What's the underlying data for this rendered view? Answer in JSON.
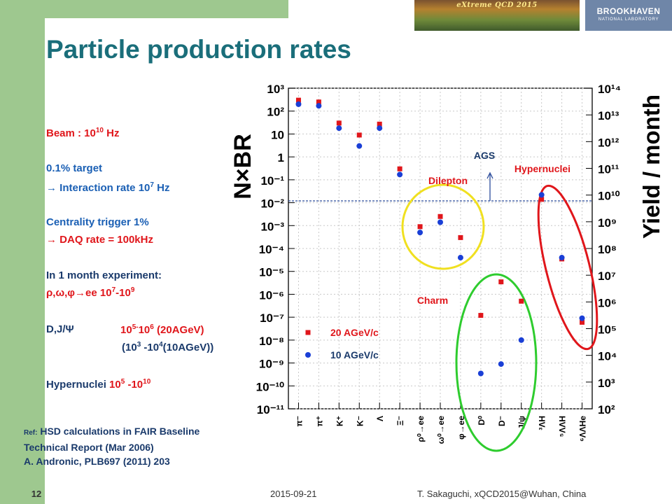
{
  "slide": {
    "title": "Particle production rates",
    "page_number": "12",
    "date": "2015-09-21",
    "author": "T. Sakaguchi, xQCD2015@Wuhan, China",
    "banner_text": "eXtreme QCD 2015",
    "logo": {
      "main": "BROOKHAVEN",
      "sub": "NATIONAL LABORATORY"
    }
  },
  "info": {
    "beam": {
      "text": "Beam : 10",
      "sup": "10",
      "suffix": " Hz"
    },
    "target": "0.1% target",
    "interaction": {
      "text": "→ Interaction rate 10",
      "sup": "7",
      "suffix": " Hz"
    },
    "centrality": "Centrality trigger 1%",
    "daq": "→ DAQ rate = 100kHz",
    "month_label": "In 1 month experiment:",
    "vector": {
      "label": "ρ,ω,φ→ee ",
      "val": "10",
      "sup1": "7",
      "mid": "-10",
      "sup2": "9"
    },
    "charm": {
      "label": "D,J/Ψ",
      "l1a": "10",
      "l1s1": "5-",
      "l1b": "10",
      "l1s2": "6",
      "l1c": " (20AGeV)",
      "l2a": "(10",
      "l2s1": "3",
      "l2b": " -10",
      "l2s2": "4",
      "l2c": "(10AGeV))"
    },
    "hyper": {
      "label": "Hypernuclei ",
      "a": "10",
      "s1": "5",
      "b": " -10",
      "s2": "10"
    }
  },
  "reference": {
    "prefix": "Ref:",
    "line1": " HSD calculations in FAIR Baseline",
    "line2": "Technical Report (Mar 2006)",
    "line3": "A. Andronic, PLB697 (2011) 203"
  },
  "chart_data": {
    "type": "scatter",
    "ylabel": "N×BR",
    "y2label": "Yield / month",
    "yscale": "log",
    "ylim": [
      1e-11,
      1000
    ],
    "y2lim": [
      100,
      100000000000000.0
    ],
    "grid": true,
    "categories": [
      "π⁻",
      "π⁺",
      "K⁺",
      "K⁻",
      "Λ",
      "Ξ⁻",
      "ρ⁰→ee",
      "ω⁰→ee",
      "φ→ee",
      "D⁰",
      "D⁻",
      "J/ψ",
      "³ΛH",
      "⁵ΛΛH",
      "⁶ΛΛHe"
    ],
    "series": [
      {
        "name": "20 AGeV/c",
        "color": "#e0161b",
        "marker": "square",
        "values": [
          300,
          250,
          30,
          9,
          27,
          0.3,
          0.0009,
          0.0025,
          0.0003,
          1.2e-07,
          3.5e-06,
          5e-07,
          0.014,
          3.5e-05,
          6e-08
        ]
      },
      {
        "name": "10 AGeV/c",
        "color": "#1a3fd6",
        "marker": "circle",
        "values": [
          200,
          170,
          18,
          3,
          18,
          0.17,
          0.0005,
          0.0014,
          4e-05,
          3.5e-10,
          9e-10,
          1e-08,
          0.022,
          4e-05,
          9e-08
        ]
      }
    ],
    "reference_line": {
      "value": 0.012,
      "label": "AGS"
    },
    "groups": [
      {
        "label": "Dilepton",
        "color": "#f0e020"
      },
      {
        "label": "Charm",
        "color": "#2ecc2e"
      },
      {
        "label": "Hypernuclei",
        "color": "#e0161b"
      }
    ],
    "left_ticks": [
      "10³",
      "10²",
      "10",
      "1",
      "10⁻¹",
      "10⁻²",
      "10⁻³",
      "10⁻⁴",
      "10⁻⁵",
      "10⁻⁶",
      "10⁻⁷",
      "10⁻⁸",
      "10⁻⁹",
      "10⁻¹⁰",
      "10⁻¹¹"
    ],
    "right_ticks": [
      "10¹⁴",
      "10¹³",
      "10¹²",
      "10¹¹",
      "10¹⁰",
      "10⁹",
      "10⁸",
      "10⁷",
      "10⁶",
      "10⁵",
      "10⁴",
      "10³",
      "10²"
    ]
  }
}
